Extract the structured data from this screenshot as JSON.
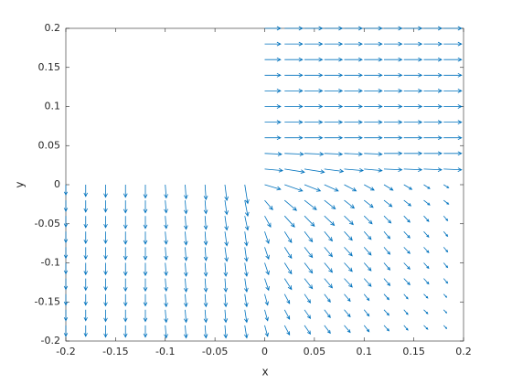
{
  "chart_data": {
    "type": "quiver",
    "color": "#0072bd",
    "xlabel": "x",
    "ylabel": "y",
    "xlim": [
      -0.2,
      0.2
    ],
    "ylim": [
      -0.2,
      0.2
    ],
    "xticks": [
      -0.2,
      -0.15,
      -0.1,
      -0.05,
      0,
      0.05,
      0.1,
      0.15,
      0.2
    ],
    "yticks": [
      -0.2,
      -0.15,
      -0.1,
      -0.05,
      0,
      0.05,
      0.1,
      0.15,
      0.2
    ],
    "x": [
      -0.2,
      -0.18,
      -0.16,
      -0.14,
      -0.12,
      -0.1,
      -0.08,
      -0.06,
      -0.04,
      -0.02,
      0,
      0.02,
      0.04,
      0.06,
      0.08,
      0.1,
      0.12,
      0.14,
      0.16,
      0.18
    ],
    "y": [
      0.2,
      0.18,
      0.16,
      0.14,
      0.12,
      0.1,
      0.08,
      0.06,
      0.04,
      0.02,
      0,
      -0.02,
      -0.04,
      -0.06,
      -0.08,
      -0.1,
      -0.12,
      -0.14,
      -0.16,
      -0.18
    ],
    "u": [
      [
        null,
        null,
        null,
        null,
        null,
        null,
        null,
        null,
        null,
        null,
        0.016,
        0.018,
        0.018,
        0.018,
        0.018,
        0.018,
        0.018,
        0.018,
        0.018,
        0.018
      ],
      [
        null,
        null,
        null,
        null,
        null,
        null,
        null,
        null,
        null,
        null,
        0.016,
        0.018,
        0.018,
        0.018,
        0.018,
        0.018,
        0.018,
        0.018,
        0.018,
        0.018
      ],
      [
        null,
        null,
        null,
        null,
        null,
        null,
        null,
        null,
        null,
        null,
        0.016,
        0.018,
        0.018,
        0.018,
        0.018,
        0.018,
        0.018,
        0.018,
        0.018,
        0.018
      ],
      [
        null,
        null,
        null,
        null,
        null,
        null,
        null,
        null,
        null,
        null,
        0.016,
        0.018,
        0.018,
        0.018,
        0.018,
        0.018,
        0.018,
        0.018,
        0.018,
        0.018
      ],
      [
        null,
        null,
        null,
        null,
        null,
        null,
        null,
        null,
        null,
        null,
        0.016,
        0.018,
        0.018,
        0.018,
        0.018,
        0.018,
        0.018,
        0.018,
        0.018,
        0.018
      ],
      [
        null,
        null,
        null,
        null,
        null,
        null,
        null,
        null,
        null,
        null,
        0.016,
        0.018,
        0.018,
        0.018,
        0.018,
        0.018,
        0.018,
        0.018,
        0.018,
        0.018
      ],
      [
        null,
        null,
        null,
        null,
        null,
        null,
        null,
        null,
        null,
        null,
        0.016,
        0.018,
        0.018,
        0.018,
        0.018,
        0.018,
        0.018,
        0.018,
        0.018,
        0.018
      ],
      [
        null,
        null,
        null,
        null,
        null,
        null,
        null,
        null,
        null,
        null,
        0.016,
        0.018,
        0.018,
        0.018,
        0.018,
        0.018,
        0.018,
        0.018,
        0.018,
        0.018
      ],
      [
        null,
        null,
        null,
        null,
        null,
        null,
        null,
        null,
        null,
        null,
        0.017,
        0.019,
        0.019,
        0.018,
        0.018,
        0.018,
        0.018,
        0.018,
        0.018,
        0.018
      ],
      [
        null,
        null,
        null,
        null,
        null,
        null,
        null,
        null,
        null,
        null,
        0.018,
        0.02,
        0.02,
        0.019,
        0.019,
        0.018,
        0.018,
        0.018,
        0.018,
        0.018
      ],
      [
        0,
        0,
        0,
        0,
        0,
        0.001,
        0.001,
        0.001,
        0.002,
        0.003,
        0.016,
        0.018,
        0.016,
        0.014,
        0.012,
        0.01,
        0.009,
        0.008,
        0.006,
        0.005
      ],
      [
        0,
        0,
        0,
        0,
        0,
        0.001,
        0.001,
        0.001,
        0.002,
        0.003,
        0.008,
        0.012,
        0.012,
        0.011,
        0.01,
        0.009,
        0.008,
        0.007,
        0.006,
        0.005
      ],
      [
        0,
        0,
        0,
        0,
        0,
        0.001,
        0.001,
        0.001,
        0.002,
        0.003,
        0.006,
        0.01,
        0.01,
        0.01,
        0.009,
        0.008,
        0.007,
        0.006,
        0.005,
        0.004
      ],
      [
        0,
        0,
        0,
        0,
        0,
        0.001,
        0.001,
        0.001,
        0.002,
        0.002,
        0.004,
        0.007,
        0.008,
        0.008,
        0.008,
        0.007,
        0.006,
        0.006,
        0.005,
        0.004
      ],
      [
        0,
        0,
        0,
        0,
        0,
        0.001,
        0.001,
        0.001,
        0.002,
        0.002,
        0.004,
        0.007,
        0.008,
        0.008,
        0.008,
        0.007,
        0.006,
        0.006,
        0.005,
        0.004
      ],
      [
        0,
        0,
        0,
        0,
        0,
        0.001,
        0.001,
        0.001,
        0.001,
        0.002,
        0.004,
        0.007,
        0.008,
        0.008,
        0.008,
        0.007,
        0.006,
        0.006,
        0.005,
        0.004
      ],
      [
        0,
        0,
        0,
        0,
        0,
        0.001,
        0.001,
        0.001,
        0.001,
        0.002,
        0.004,
        0.007,
        0.008,
        0.008,
        0.008,
        0.007,
        0.006,
        0.006,
        0.005,
        0.004
      ],
      [
        0,
        0,
        0,
        0,
        0,
        0.001,
        0.001,
        0.001,
        0.001,
        0.002,
        0.003,
        0.005,
        0.006,
        0.006,
        0.006,
        0.005,
        0.005,
        0.004,
        0.004,
        0.003
      ],
      [
        0,
        0,
        0,
        0,
        0,
        0.001,
        0.001,
        0.001,
        0.001,
        0.002,
        0.003,
        0.005,
        0.006,
        0.006,
        0.006,
        0.005,
        0.005,
        0.004,
        0.004,
        0.003
      ],
      [
        0,
        0,
        0,
        0,
        0,
        0.001,
        0.001,
        0.001,
        0.001,
        0.002,
        0.003,
        0.005,
        0.006,
        0.006,
        0.006,
        0.005,
        0.005,
        0.004,
        0.004,
        0.003
      ]
    ],
    "v": [
      [
        null,
        null,
        null,
        null,
        null,
        null,
        null,
        null,
        null,
        null,
        0,
        0,
        0,
        0,
        0,
        0,
        0,
        0,
        0,
        0
      ],
      [
        null,
        null,
        null,
        null,
        null,
        null,
        null,
        null,
        null,
        null,
        0,
        0,
        0,
        0,
        0,
        0,
        0,
        0,
        0,
        0
      ],
      [
        null,
        null,
        null,
        null,
        null,
        null,
        null,
        null,
        null,
        null,
        0,
        0,
        0,
        0,
        0,
        0,
        0,
        0,
        0,
        0
      ],
      [
        null,
        null,
        null,
        null,
        null,
        null,
        null,
        null,
        null,
        null,
        0,
        0,
        0,
        0,
        0,
        0,
        0,
        0,
        0,
        0
      ],
      [
        null,
        null,
        null,
        null,
        null,
        null,
        null,
        null,
        null,
        null,
        0,
        0,
        0,
        0,
        0,
        0,
        0,
        0,
        0,
        0
      ],
      [
        null,
        null,
        null,
        null,
        null,
        null,
        null,
        null,
        null,
        null,
        0,
        0,
        0,
        0,
        0,
        0,
        0,
        0,
        0,
        0
      ],
      [
        null,
        null,
        null,
        null,
        null,
        null,
        null,
        null,
        null,
        null,
        0,
        0,
        0,
        0,
        0,
        0,
        0,
        0,
        0,
        0
      ],
      [
        null,
        null,
        null,
        null,
        null,
        null,
        null,
        null,
        null,
        null,
        0,
        0,
        0,
        0,
        0,
        0,
        0,
        0,
        0,
        0
      ],
      [
        null,
        null,
        null,
        null,
        null,
        null,
        null,
        null,
        null,
        null,
        -0.001,
        -0.001,
        -0.001,
        -0.001,
        -0.001,
        -0.001,
        0,
        0,
        0,
        0
      ],
      [
        null,
        null,
        null,
        null,
        null,
        null,
        null,
        null,
        null,
        null,
        -0.002,
        -0.004,
        -0.004,
        -0.003,
        -0.002,
        -0.002,
        -0.001,
        -0.001,
        -0.001,
        -0.001
      ],
      [
        -0.013,
        -0.015,
        -0.016,
        -0.016,
        -0.017,
        -0.017,
        -0.018,
        -0.019,
        -0.02,
        -0.024,
        -0.006,
        -0.008,
        -0.008,
        -0.008,
        -0.008,
        -0.007,
        -0.007,
        -0.006,
        -0.005,
        -0.004
      ],
      [
        -0.014,
        -0.015,
        -0.015,
        -0.016,
        -0.016,
        -0.016,
        -0.017,
        -0.017,
        -0.018,
        -0.02,
        -0.012,
        -0.013,
        -0.012,
        -0.011,
        -0.01,
        -0.009,
        -0.008,
        -0.007,
        -0.006,
        -0.005
      ],
      [
        -0.014,
        -0.015,
        -0.015,
        -0.016,
        -0.016,
        -0.016,
        -0.017,
        -0.017,
        -0.018,
        -0.018,
        -0.014,
        -0.014,
        -0.013,
        -0.012,
        -0.011,
        -0.01,
        -0.009,
        -0.008,
        -0.007,
        -0.006
      ],
      [
        -0.014,
        -0.015,
        -0.015,
        -0.016,
        -0.016,
        -0.016,
        -0.017,
        -0.017,
        -0.018,
        -0.018,
        -0.015,
        -0.014,
        -0.013,
        -0.012,
        -0.011,
        -0.01,
        -0.009,
        -0.008,
        -0.007,
        -0.006
      ],
      [
        -0.014,
        -0.015,
        -0.015,
        -0.016,
        -0.016,
        -0.016,
        -0.017,
        -0.017,
        -0.018,
        -0.018,
        -0.015,
        -0.014,
        -0.013,
        -0.012,
        -0.011,
        -0.01,
        -0.009,
        -0.008,
        -0.007,
        -0.006
      ],
      [
        -0.014,
        -0.015,
        -0.015,
        -0.016,
        -0.016,
        -0.016,
        -0.017,
        -0.017,
        -0.017,
        -0.017,
        -0.015,
        -0.014,
        -0.013,
        -0.012,
        -0.011,
        -0.01,
        -0.009,
        -0.008,
        -0.007,
        -0.006
      ],
      [
        -0.014,
        -0.015,
        -0.015,
        -0.016,
        -0.016,
        -0.016,
        -0.017,
        -0.017,
        -0.017,
        -0.017,
        -0.015,
        -0.014,
        -0.013,
        -0.012,
        -0.011,
        -0.01,
        -0.009,
        -0.008,
        -0.007,
        -0.006
      ],
      [
        -0.014,
        -0.014,
        -0.015,
        -0.015,
        -0.015,
        -0.016,
        -0.016,
        -0.016,
        -0.016,
        -0.016,
        -0.014,
        -0.012,
        -0.011,
        -0.01,
        -0.009,
        -0.008,
        -0.007,
        -0.006,
        -0.005,
        -0.004
      ],
      [
        -0.014,
        -0.014,
        -0.015,
        -0.015,
        -0.015,
        -0.016,
        -0.016,
        -0.016,
        -0.016,
        -0.016,
        -0.014,
        -0.012,
        -0.011,
        -0.01,
        -0.009,
        -0.008,
        -0.007,
        -0.006,
        -0.005,
        -0.004
      ],
      [
        -0.014,
        -0.014,
        -0.015,
        -0.015,
        -0.015,
        -0.016,
        -0.016,
        -0.016,
        -0.016,
        -0.016,
        -0.014,
        -0.012,
        -0.011,
        -0.01,
        -0.009,
        -0.008,
        -0.007,
        -0.006,
        -0.005,
        -0.004
      ]
    ]
  }
}
